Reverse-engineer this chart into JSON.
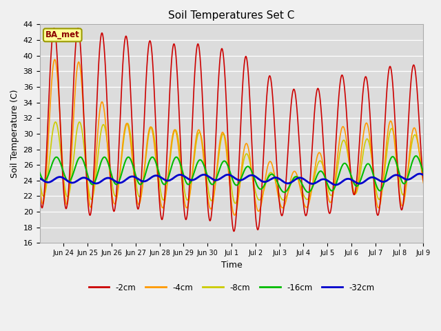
{
  "title": "Soil Temperatures Set C",
  "xlabel": "Time",
  "ylabel": "Soil Temperature (C)",
  "ylim": [
    16,
    44
  ],
  "yticks": [
    16,
    18,
    20,
    22,
    24,
    26,
    28,
    30,
    32,
    34,
    36,
    38,
    40,
    42,
    44
  ],
  "background_color": "#dcdcdc",
  "fig_background": "#f0f0f0",
  "series": {
    "-2cm": {
      "color": "#cc0000",
      "lw": 1.2
    },
    "-4cm": {
      "color": "#ff9900",
      "lw": 1.2
    },
    "-8cm": {
      "color": "#cccc00",
      "lw": 1.2
    },
    "-16cm": {
      "color": "#00bb00",
      "lw": 1.5
    },
    "-32cm": {
      "color": "#0000cc",
      "lw": 2.0
    }
  },
  "annotation_text": "BA_met",
  "tick_labels": [
    "Jun 24",
    "Jun 25",
    "Jun 26",
    "Jun 27",
    "Jun 28",
    "Jun 29",
    "Jun 30",
    "Jul 1",
    "Jul 2",
    "Jul 3",
    "Jul 4",
    "Jul 5",
    "Jul 6",
    "Jul 7",
    "Jul 8",
    "Jul 9"
  ],
  "peak_2cm": [
    43.5,
    43.5,
    42.5,
    42.5,
    41.5,
    41.5,
    41.5,
    40.5,
    39.5,
    36.0,
    35.5,
    36.0,
    38.5,
    36.5,
    40.0,
    38.0
  ],
  "trough_2cm": [
    20.5,
    19.5,
    20.0,
    20.5,
    19.0,
    19.0,
    19.0,
    17.5,
    17.5,
    19.5,
    19.5,
    19.5,
    22.5,
    19.5,
    20.0,
    22.5
  ],
  "peak_4cm": [
    39.5,
    39.0,
    31.0,
    31.5,
    30.5,
    30.5,
    30.5,
    30.0,
    28.0,
    25.5,
    25.0,
    29.0,
    32.0,
    31.0,
    32.0,
    30.0
  ],
  "trough_4cm": [
    21.0,
    20.5,
    21.0,
    21.0,
    20.5,
    20.5,
    20.5,
    19.5,
    20.0,
    20.5,
    20.5,
    21.0,
    22.5,
    20.5,
    20.5,
    22.5
  ],
  "peak_8cm": [
    31.5,
    31.5,
    31.0,
    31.5,
    30.5,
    30.5,
    30.0,
    30.0,
    26.0,
    24.5,
    24.5,
    27.5,
    30.0,
    29.0,
    31.5,
    29.0
  ],
  "trough_8cm": [
    22.0,
    21.5,
    22.0,
    22.0,
    21.5,
    21.5,
    21.5,
    21.0,
    21.5,
    21.5,
    21.5,
    22.0,
    22.5,
    21.5,
    22.0,
    23.0
  ],
  "peak_16cm": [
    27.0,
    27.0,
    27.0,
    27.0,
    27.0,
    27.0,
    26.5,
    26.5,
    25.5,
    24.5,
    24.5,
    25.5,
    26.5,
    26.0,
    27.5,
    27.0
  ],
  "trough_16cm": [
    24.0,
    23.5,
    23.5,
    23.5,
    23.5,
    23.5,
    23.5,
    23.5,
    23.0,
    22.5,
    22.5,
    22.5,
    23.5,
    22.5,
    23.5,
    24.0
  ],
  "mean_32cm": [
    24.1,
    24.0,
    24.0,
    24.2,
    24.3,
    24.4,
    24.4,
    24.4,
    24.3,
    24.0,
    24.0,
    23.8,
    23.9,
    24.1,
    24.4,
    24.5
  ]
}
